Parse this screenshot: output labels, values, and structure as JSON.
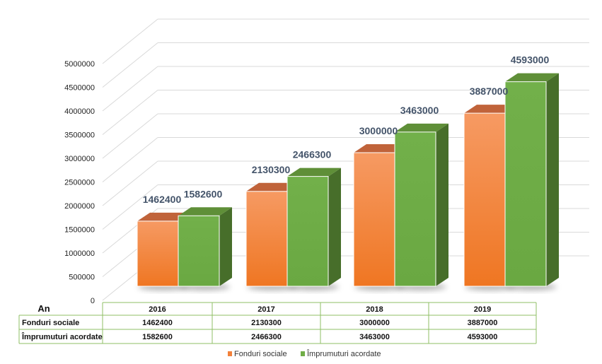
{
  "chart_data": {
    "type": "bar",
    "categories": [
      "2016",
      "2017",
      "2018",
      "2019"
    ],
    "series": [
      {
        "name": "Fonduri sociale",
        "values": [
          1462400,
          2130300,
          3000000,
          3887000
        ],
        "color": "#f2813a"
      },
      {
        "name": "Împrumuturi acordate",
        "values": [
          1582600,
          2466300,
          3463000,
          4593000
        ],
        "color": "#70ad47"
      }
    ],
    "ylim": [
      0,
      5000000
    ],
    "yticks": [
      "0",
      "500000",
      "1000000",
      "1500000",
      "2000000",
      "2500000",
      "3000000",
      "3500000",
      "4000000",
      "4500000",
      "5000000"
    ],
    "grid": true,
    "legend": "bottom",
    "data_table": {
      "header": "An",
      "rows": [
        {
          "label": "Fonduri sociale",
          "values": [
            "1462400",
            "2130300",
            "3000000",
            "3887000"
          ]
        },
        {
          "label": "Împrumuturi acordate",
          "values": [
            "1582600",
            "2466300",
            "3463000",
            "4593000"
          ]
        }
      ]
    }
  }
}
